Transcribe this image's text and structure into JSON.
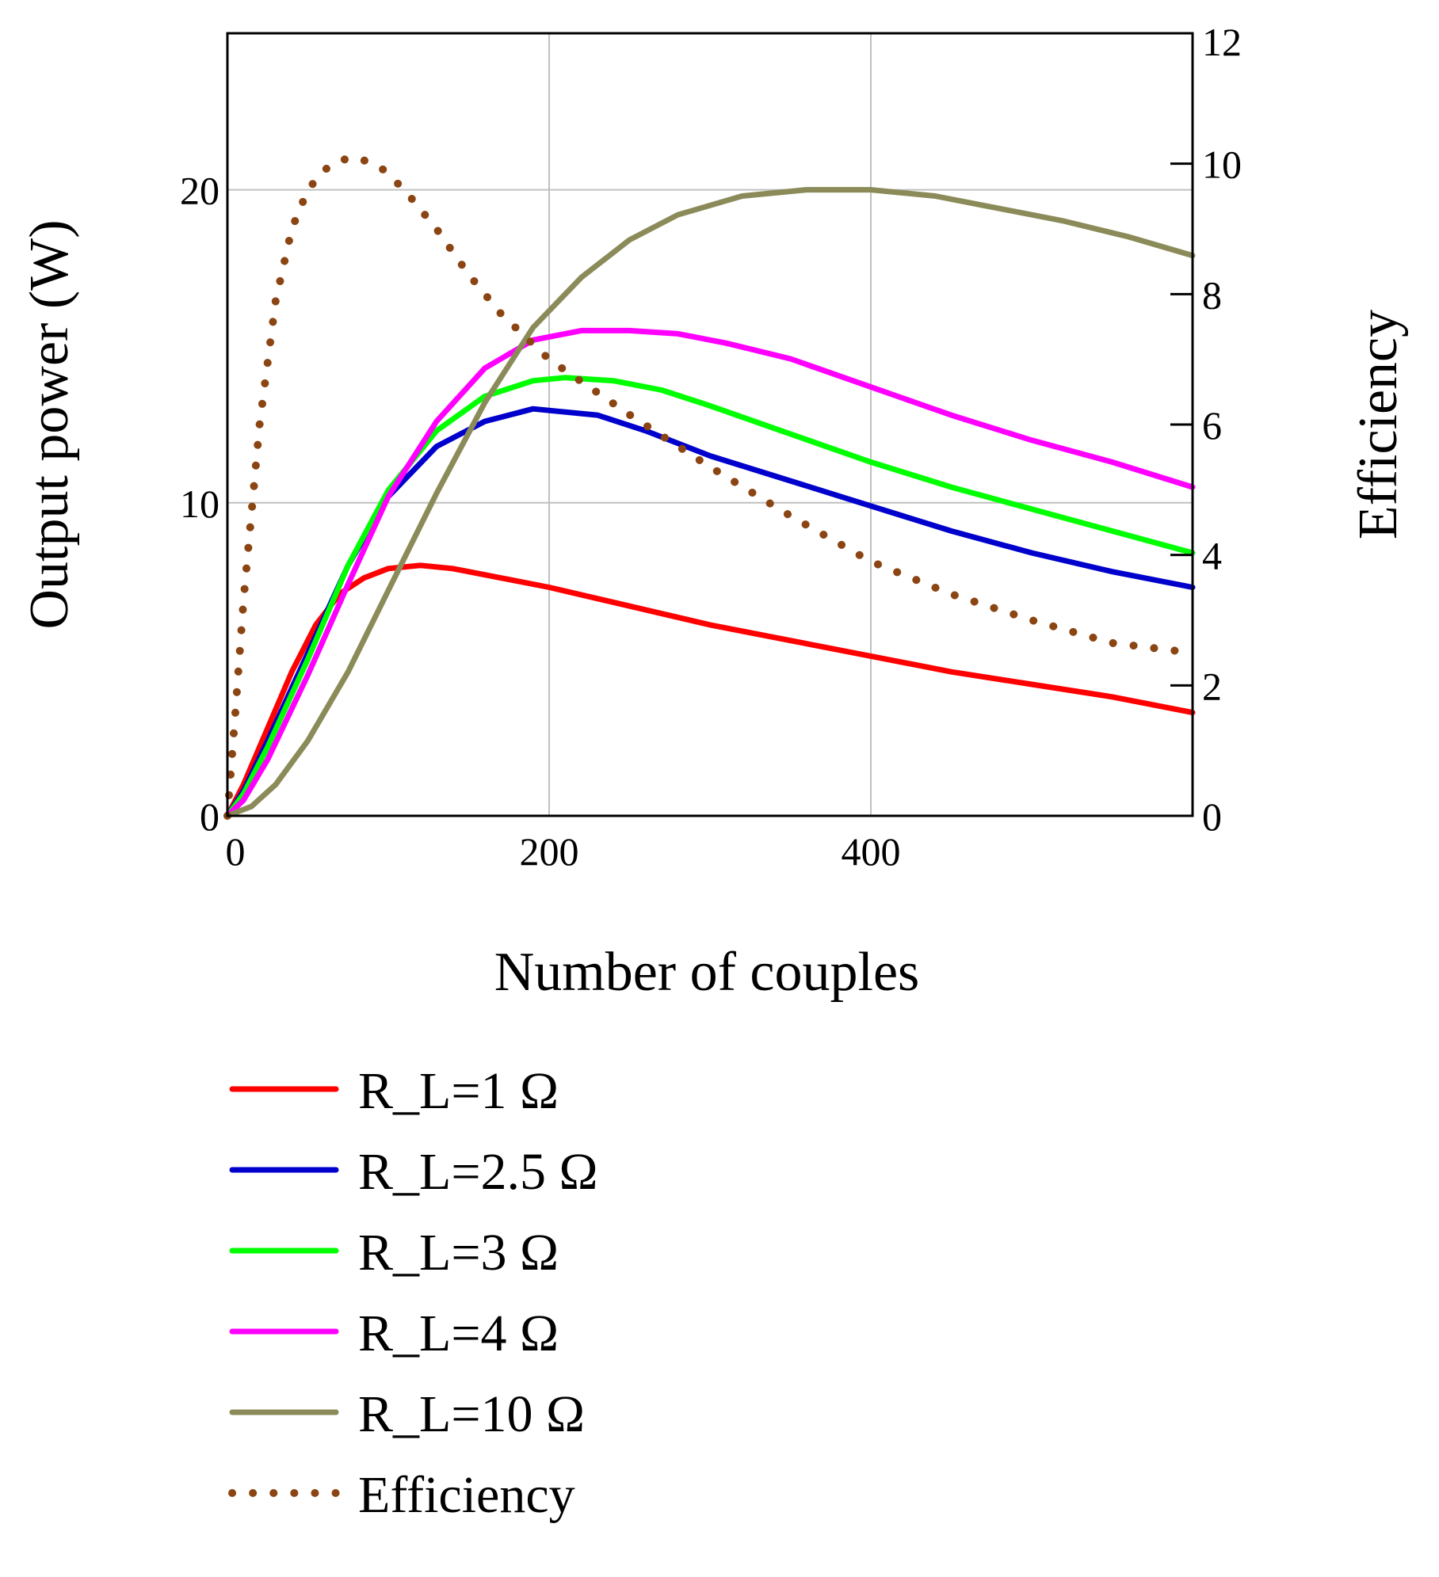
{
  "chart_data": {
    "type": "line",
    "xlabel": "Number of couples",
    "ylabel_left": "Output power (W)",
    "ylabel_right": "Efficiency",
    "xlim": [
      0,
      600
    ],
    "ylim_left": [
      0,
      25
    ],
    "ylim_right": [
      0,
      12
    ],
    "x_ticks": [
      0,
      200,
      400
    ],
    "y_left_ticks": [
      0,
      10,
      20
    ],
    "y_right_ticks": [
      0,
      2,
      4,
      6,
      8,
      10,
      12
    ],
    "grid": true,
    "legend_position": "bottom-left",
    "series": [
      {
        "name": "R_L=1 Ω",
        "axis": "left",
        "color": "#ff0000",
        "style": "solid",
        "points": [
          [
            0,
            0
          ],
          [
            10,
            1
          ],
          [
            25,
            2.8
          ],
          [
            40,
            4.6
          ],
          [
            55,
            6.1
          ],
          [
            70,
            7.1
          ],
          [
            85,
            7.6
          ],
          [
            100,
            7.9
          ],
          [
            120,
            8
          ],
          [
            140,
            7.9
          ],
          [
            160,
            7.7
          ],
          [
            200,
            7.3
          ],
          [
            250,
            6.7
          ],
          [
            300,
            6.1
          ],
          [
            350,
            5.6
          ],
          [
            400,
            5.1
          ],
          [
            450,
            4.6
          ],
          [
            500,
            4.2
          ],
          [
            550,
            3.8
          ],
          [
            600,
            3.3
          ]
        ]
      },
      {
        "name": "R_L=2.5 Ω",
        "axis": "left",
        "color": "#0000cc",
        "style": "solid",
        "points": [
          [
            0,
            0
          ],
          [
            10,
            0.8
          ],
          [
            25,
            2.4
          ],
          [
            50,
            5.2
          ],
          [
            75,
            8
          ],
          [
            100,
            10.2
          ],
          [
            130,
            11.8
          ],
          [
            160,
            12.6
          ],
          [
            190,
            13
          ],
          [
            200,
            12.95
          ],
          [
            230,
            12.8
          ],
          [
            260,
            12.3
          ],
          [
            300,
            11.5
          ],
          [
            350,
            10.7
          ],
          [
            400,
            9.9
          ],
          [
            450,
            9.1
          ],
          [
            500,
            8.4
          ],
          [
            550,
            7.8
          ],
          [
            600,
            7.3
          ]
        ]
      },
      {
        "name": "R_L=3 Ω",
        "axis": "left",
        "color": "#00ff00",
        "style": "solid",
        "points": [
          [
            0,
            0
          ],
          [
            10,
            0.7
          ],
          [
            25,
            2.2
          ],
          [
            50,
            5
          ],
          [
            75,
            8
          ],
          [
            100,
            10.4
          ],
          [
            130,
            12.3
          ],
          [
            160,
            13.4
          ],
          [
            190,
            13.9
          ],
          [
            210,
            14
          ],
          [
            240,
            13.9
          ],
          [
            270,
            13.6
          ],
          [
            300,
            13.1
          ],
          [
            350,
            12.2
          ],
          [
            400,
            11.3
          ],
          [
            450,
            10.5
          ],
          [
            500,
            9.8
          ],
          [
            550,
            9.1
          ],
          [
            600,
            8.4
          ]
        ]
      },
      {
        "name": "R_L=4 Ω",
        "axis": "left",
        "color": "#ff00ff",
        "style": "solid",
        "points": [
          [
            0,
            0
          ],
          [
            10,
            0.5
          ],
          [
            25,
            1.8
          ],
          [
            50,
            4.5
          ],
          [
            75,
            7.4
          ],
          [
            100,
            10.2
          ],
          [
            130,
            12.6
          ],
          [
            160,
            14.3
          ],
          [
            190,
            15.2
          ],
          [
            220,
            15.5
          ],
          [
            250,
            15.5
          ],
          [
            280,
            15.4
          ],
          [
            310,
            15.1
          ],
          [
            350,
            14.6
          ],
          [
            400,
            13.7
          ],
          [
            450,
            12.8
          ],
          [
            500,
            12
          ],
          [
            550,
            11.3
          ],
          [
            600,
            10.5
          ]
        ]
      },
      {
        "name": "R_L=10 Ω",
        "axis": "left",
        "color": "#8b8b5a",
        "style": "solid",
        "points": [
          [
            0,
            0
          ],
          [
            15,
            0.3
          ],
          [
            30,
            1
          ],
          [
            50,
            2.4
          ],
          [
            75,
            4.6
          ],
          [
            100,
            7.2
          ],
          [
            130,
            10.3
          ],
          [
            160,
            13.2
          ],
          [
            190,
            15.6
          ],
          [
            220,
            17.2
          ],
          [
            250,
            18.4
          ],
          [
            280,
            19.2
          ],
          [
            320,
            19.8
          ],
          [
            360,
            20
          ],
          [
            400,
            20
          ],
          [
            440,
            19.8
          ],
          [
            480,
            19.4
          ],
          [
            520,
            19
          ],
          [
            560,
            18.5
          ],
          [
            600,
            17.9
          ]
        ]
      },
      {
        "name": "Efficiency",
        "axis": "right",
        "color": "#8b4513",
        "style": "dotted",
        "points": [
          [
            0,
            0
          ],
          [
            5,
            1.6
          ],
          [
            10,
            3.3
          ],
          [
            20,
            6
          ],
          [
            30,
            7.9
          ],
          [
            40,
            9
          ],
          [
            50,
            9.6
          ],
          [
            60,
            9.9
          ],
          [
            70,
            10.05
          ],
          [
            80,
            10.1
          ],
          [
            95,
            9.95
          ],
          [
            110,
            9.6
          ],
          [
            130,
            9
          ],
          [
            150,
            8.3
          ],
          [
            170,
            7.7
          ],
          [
            200,
            7
          ],
          [
            250,
            6.15
          ],
          [
            300,
            5.35
          ],
          [
            350,
            4.6
          ],
          [
            400,
            3.9
          ],
          [
            450,
            3.4
          ],
          [
            500,
            3
          ],
          [
            550,
            2.65
          ],
          [
            600,
            2.5
          ]
        ]
      }
    ]
  }
}
